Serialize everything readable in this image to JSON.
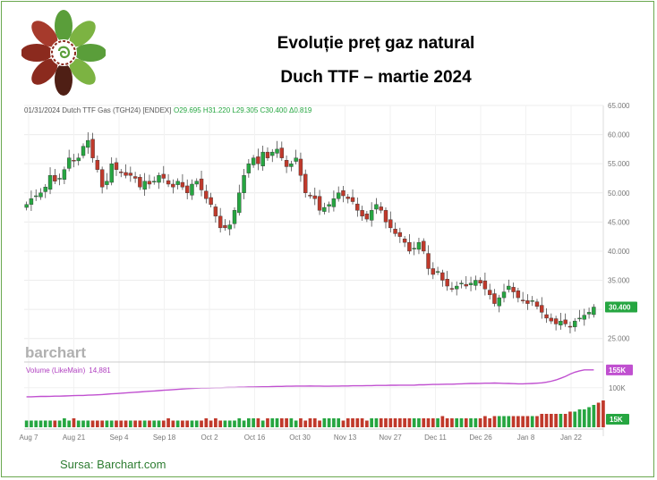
{
  "header": {
    "title_line1": "Evoluție preț gaz natural",
    "title_line2": "Duch TTF – martie 2024"
  },
  "source": "Sursa: Barchart.com",
  "logo": {
    "name": "flower-logo",
    "colors": [
      "#8b2a1e",
      "#5a9e3a",
      "#7cb342",
      "#4f1f15"
    ]
  },
  "chart_data": {
    "type": "candlestick",
    "info_line": {
      "label": "01/31/2024 Dutch TTF Gas (TGH24) [ENDEX]",
      "values": "O29.695 H31.220 L29.305 C30.400 Δ0.819"
    },
    "watermark": "barchart",
    "last_price": "30.400",
    "y_ticks": [
      "65.000",
      "60.000",
      "55.000",
      "50.000",
      "45.000",
      "40.000",
      "35.000",
      "30.000",
      "25.000"
    ],
    "ylim": [
      22.5,
      65
    ],
    "x_tick_labels": [
      "Aug 7",
      "Aug 21",
      "Sep 4",
      "Sep 18",
      "Oct 2",
      "Oct 16",
      "Oct 30",
      "Nov 13",
      "Nov 27",
      "Dec 11",
      "Dec 26",
      "Jan 8",
      "Jan 22"
    ],
    "closes": [
      48,
      49,
      49.5,
      50,
      51,
      53,
      52,
      52.5,
      54,
      56,
      55.5,
      56,
      58,
      59,
      56,
      54,
      51,
      52,
      55,
      54,
      53.5,
      53,
      53,
      52.5,
      51,
      52,
      51.5,
      52,
      53,
      52.5,
      51.5,
      51,
      52,
      51,
      50,
      51.5,
      52,
      50.5,
      49,
      48,
      46,
      44,
      44,
      44.5,
      47,
      50,
      53,
      55,
      56,
      55,
      57,
      56,
      57,
      57.5,
      56,
      54.5,
      55,
      56,
      53,
      50,
      49.5,
      49,
      47,
      47.5,
      48,
      49,
      50,
      49.5,
      49,
      48.5,
      47,
      46,
      45.5,
      47,
      48,
      47,
      45,
      44,
      43,
      42.5,
      41.5,
      40,
      40.5,
      41.5,
      40,
      37,
      36,
      36.5,
      35,
      34,
      33.5,
      34,
      34.5,
      34,
      34.5,
      35,
      34.5,
      33.5,
      32.5,
      31,
      32,
      33,
      34,
      33,
      32,
      31.5,
      31,
      31.5,
      30.5,
      29.5,
      28.5,
      28,
      27.5,
      28,
      27.5,
      27,
      28,
      28.5,
      29,
      29.5,
      30.4
    ],
    "volume": {
      "label": "Volume (LikeMain)",
      "value": "14,881",
      "badge_main": "155K",
      "badge_low": "15K",
      "tick_100k": "100K",
      "bars": [
        3,
        3,
        3,
        3,
        3,
        3,
        3,
        3,
        4,
        3,
        4,
        3,
        3,
        3,
        3,
        3,
        3,
        3,
        3,
        3,
        3,
        3,
        3,
        3,
        3,
        3,
        3,
        3,
        3,
        3,
        4,
        3,
        3,
        3,
        3,
        3,
        3,
        3,
        4,
        3,
        4,
        3,
        3,
        3,
        3,
        4,
        3,
        4,
        4,
        4,
        3,
        4,
        4,
        4,
        4,
        4,
        4,
        3,
        4,
        3,
        4,
        4,
        3,
        4,
        4,
        4,
        4,
        3,
        4,
        4,
        4,
        4,
        3,
        4,
        4,
        4,
        4,
        4,
        4,
        4,
        4,
        4,
        4,
        4,
        4,
        4,
        4,
        4,
        5,
        4,
        4,
        4,
        4,
        4,
        4,
        4,
        4,
        5,
        4,
        5,
        5,
        5,
        5,
        5,
        5,
        5,
        5,
        5,
        5,
        6,
        6,
        6,
        6,
        6,
        6,
        7,
        7,
        8,
        8,
        9,
        10,
        11,
        12
      ],
      "like_main": [
        72,
        72,
        72.5,
        73,
        73,
        73.5,
        74,
        74,
        74.5,
        75,
        75.5,
        76,
        76,
        77,
        77.5,
        78,
        79,
        80,
        81,
        82,
        83,
        84,
        85,
        86,
        87,
        88,
        89,
        90,
        91,
        92,
        93,
        94,
        95,
        96,
        97,
        98,
        98.5,
        99,
        99,
        99.5,
        100,
        100,
        100.5,
        101,
        101,
        101.5,
        101.5,
        102,
        102,
        102.5,
        103,
        103,
        103.5,
        104,
        104,
        104.5,
        104.5,
        105,
        105,
        105,
        105.5,
        105,
        105,
        104.5,
        104.5,
        105,
        105,
        105.5,
        105.5,
        106,
        106,
        106,
        106.5,
        106.5,
        107,
        107,
        107,
        107.5,
        107.5,
        108,
        108,
        108,
        108,
        109,
        109,
        109.5,
        110,
        110,
        110.5,
        111,
        111,
        111.5,
        112,
        112.5,
        113,
        113,
        113.5,
        114,
        114,
        114.5,
        114,
        113.5,
        113,
        112.5,
        112,
        112,
        112.5,
        113,
        114,
        115,
        117,
        120,
        124,
        129,
        135,
        142,
        148,
        152,
        155,
        155,
        155
      ],
      "like_max": 160
    },
    "colors": {
      "up": "#26a641",
      "down": "#c0392b",
      "volume_line": "#c050d0",
      "badge_main": "#c050d0",
      "badge_low": "#26a641",
      "last": "#26a641"
    }
  }
}
